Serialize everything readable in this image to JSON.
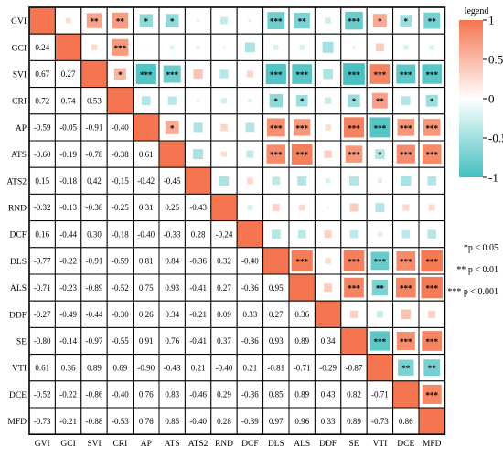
{
  "chart_data": {
    "type": "heatmap",
    "variables": [
      "GVI",
      "GCI",
      "SVI",
      "CRI",
      "AP",
      "ATS",
      "ATS2",
      "RND",
      "DCF",
      "DLS",
      "ALS",
      "DDF",
      "SE",
      "VTI",
      "DCE",
      "MFD"
    ],
    "lower_values": [
      [],
      [
        0.24
      ],
      [
        0.67,
        0.27
      ],
      [
        0.72,
        0.74,
        0.53
      ],
      [
        -0.59,
        -0.05,
        -0.91,
        -0.4
      ],
      [
        -0.6,
        -0.19,
        -0.78,
        -0.38,
        0.61
      ],
      [
        0.15,
        -0.18,
        0.42,
        -0.15,
        -0.42,
        -0.45
      ],
      [
        -0.32,
        -0.13,
        -0.38,
        -0.25,
        0.31,
        0.25,
        -0.43
      ],
      [
        0.16,
        -0.44,
        0.3,
        -0.18,
        -0.4,
        -0.33,
        0.28,
        -0.24
      ],
      [
        -0.77,
        -0.22,
        -0.91,
        -0.59,
        0.81,
        0.84,
        -0.36,
        0.32,
        -0.4
      ],
      [
        -0.71,
        -0.23,
        -0.89,
        -0.52,
        0.75,
        0.93,
        -0.41,
        0.27,
        -0.36,
        0.95
      ],
      [
        -0.27,
        -0.49,
        -0.44,
        -0.3,
        0.26,
        0.34,
        -0.21,
        0.09,
        0.33,
        0.27,
        0.36
      ],
      [
        -0.8,
        -0.14,
        -0.97,
        -0.55,
        0.91,
        0.76,
        -0.41,
        0.37,
        -0.36,
        0.93,
        0.89,
        0.34
      ],
      [
        0.61,
        0.36,
        0.89,
        0.69,
        -0.9,
        -0.43,
        0.21,
        -0.4,
        0.21,
        -0.81,
        -0.71,
        -0.29,
        -0.87
      ],
      [
        -0.52,
        -0.22,
        -0.86,
        -0.4,
        0.76,
        0.83,
        -0.46,
        0.29,
        -0.36,
        0.85,
        0.89,
        0.43,
        0.82,
        -0.71
      ],
      [
        -0.73,
        -0.21,
        -0.88,
        -0.53,
        0.76,
        0.85,
        -0.4,
        0.28,
        -0.39,
        0.97,
        0.96,
        0.33,
        0.89,
        -0.73,
        0.86
      ]
    ],
    "upper_stars": {
      "0-2": "**",
      "0-3": "**",
      "0-4": "*",
      "0-5": "*",
      "0-9": "***",
      "0-10": "**",
      "0-12": "***",
      "0-13": "*",
      "0-14": "*",
      "0-15": "**",
      "1-3": "***",
      "2-3": "*",
      "2-4": "***",
      "2-5": "***",
      "2-9": "***",
      "2-10": "***",
      "2-12": "***",
      "2-13": "***",
      "2-14": "***",
      "2-15": "***",
      "3-9": "*",
      "3-10": "*",
      "3-12": "*",
      "3-13": "**",
      "3-15": "*",
      "4-5": "*",
      "4-9": "***",
      "4-10": "***",
      "4-12": "***",
      "4-13": "***",
      "4-14": "***",
      "4-15": "***",
      "5-9": "***",
      "5-10": "***",
      "5-12": "***",
      "5-13": "*",
      "5-14": "***",
      "5-15": "***",
      "9-10": "***",
      "9-12": "***",
      "9-13": "***",
      "9-14": "***",
      "9-15": "***",
      "10-12": "***",
      "10-13": "**",
      "10-14": "***",
      "10-15": "***",
      "12-13": "***",
      "12-14": "***",
      "12-15": "***",
      "13-14": "**",
      "13-15": "**",
      "14-15": "***"
    },
    "legend": {
      "title": "legend",
      "ticks": [
        1,
        0.5,
        0,
        -0.5,
        -1
      ],
      "tick_labels": [
        "1",
        "0.5",
        "0",
        "-0.5",
        "-1"
      ],
      "colors": {
        "positive": "#f4754f",
        "neutral": "#ffffff",
        "negative": "#43bfbf"
      }
    },
    "significance_notes": [
      "*p < 0.05",
      "** p < 0.01",
      "*** p < 0.001"
    ]
  }
}
